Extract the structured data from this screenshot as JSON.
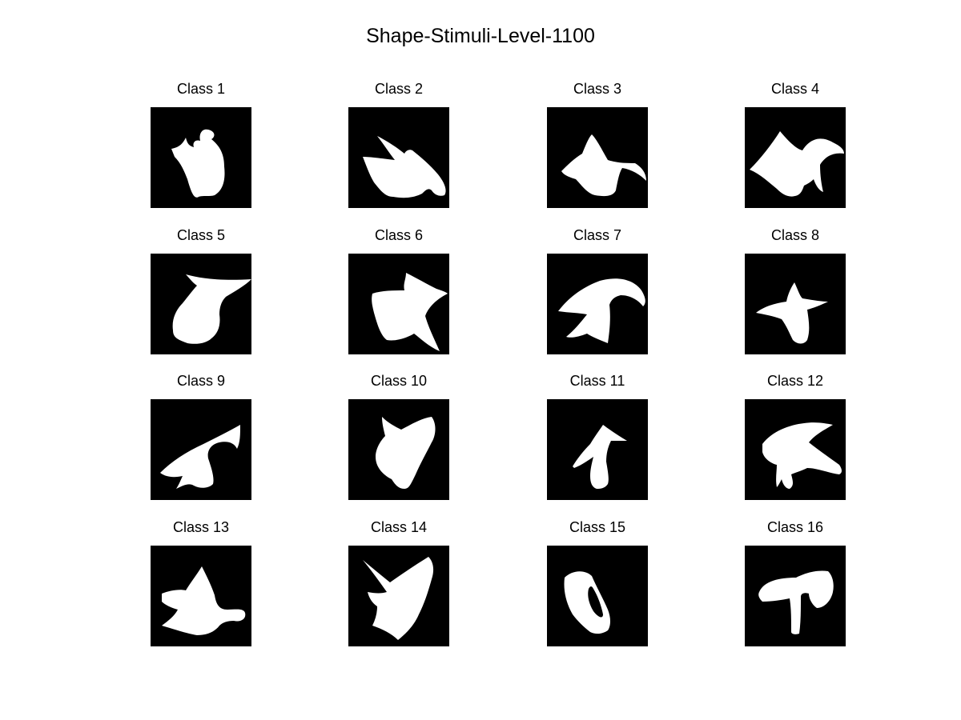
{
  "title": "Shape-Stimuli-Level-1100",
  "colors": {
    "background": "#000000",
    "shape": "#ffffff"
  },
  "panels": [
    {
      "label": "Class 1"
    },
    {
      "label": "Class 2"
    },
    {
      "label": "Class 3"
    },
    {
      "label": "Class 4"
    },
    {
      "label": "Class 5"
    },
    {
      "label": "Class 6"
    },
    {
      "label": "Class 7"
    },
    {
      "label": "Class 8"
    },
    {
      "label": "Class 9"
    },
    {
      "label": "Class 10"
    },
    {
      "label": "Class 11"
    },
    {
      "label": "Class 12"
    },
    {
      "label": "Class 13"
    },
    {
      "label": "Class 14"
    },
    {
      "label": "Class 15"
    },
    {
      "label": "Class 16"
    }
  ]
}
